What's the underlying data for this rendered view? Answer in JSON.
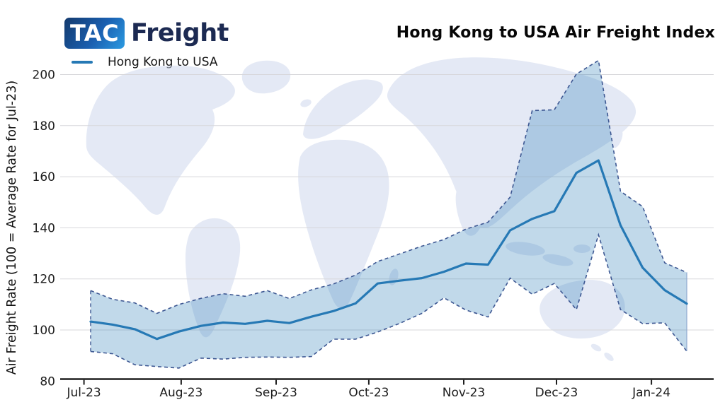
{
  "brand": {
    "box_text": "TAC",
    "name_text": "Freight"
  },
  "title": "Hong Kong to USA Air Freight Index",
  "legend": {
    "label": "Hong Kong to USA",
    "line_color": "#2679b5"
  },
  "y_axis": {
    "label": "Air Freight Rate (100 = Average Rate for Jul-23)",
    "ticks": [
      "80",
      "100",
      "120",
      "140",
      "160",
      "180",
      "200"
    ]
  },
  "x_axis": {
    "ticks": [
      "Jul-23",
      "Aug-23",
      "Sep-23",
      "Oct-23",
      "Nov-23",
      "Dec-23",
      "Jan-24"
    ]
  },
  "chart_data": {
    "type": "line",
    "title": "Hong Kong to USA Air Freight Index",
    "ylabel": "Air Freight Rate (100 = Average Rate for Jul-23)",
    "ylim": [
      80,
      207
    ],
    "grid": true,
    "legend_position": "top-left",
    "x_unit": "weekly observations, Jul-2023 to mid-Jan-2024",
    "x_tick_labels": [
      "Jul-23",
      "Aug-23",
      "Sep-23",
      "Oct-23",
      "Nov-23",
      "Dec-23",
      "Jan-24"
    ],
    "x_tick_week_index": [
      -0.3,
      4.1,
      8.4,
      12.6,
      16.9,
      21.1,
      25.4
    ],
    "y_gridline_values": [
      100,
      120,
      140,
      160,
      180,
      200
    ],
    "series": [
      {
        "name": "Hong Kong to USA",
        "role": "index",
        "values": [
          103.3,
          102.1,
          100.3,
          96.5,
          99.4,
          101.6,
          102.9,
          102.4,
          103.6,
          102.7,
          105.2,
          107.4,
          110.4,
          118.2,
          119.3,
          120.3,
          122.8,
          126.0,
          125.6,
          139.0,
          143.5,
          146.5,
          161.5,
          166.4,
          141.0,
          124.4,
          115.6,
          110.3
        ]
      },
      {
        "name": "Upper uncertainty band",
        "role": "band_upper",
        "values": [
          115.4,
          112.0,
          110.6,
          106.5,
          110.0,
          112.4,
          114.2,
          113.2,
          115.4,
          112.3,
          115.7,
          118.0,
          121.5,
          126.8,
          129.8,
          132.8,
          135.4,
          139.5,
          142.2,
          152.0,
          185.9,
          186.2,
          200.2,
          205.5,
          154.3,
          148.3,
          126.3,
          122.5
        ]
      },
      {
        "name": "Lower uncertainty band",
        "role": "band_lower",
        "values": [
          91.6,
          90.7,
          86.4,
          85.7,
          85.1,
          89.0,
          88.6,
          89.3,
          89.4,
          89.3,
          89.6,
          96.4,
          96.4,
          99.2,
          102.6,
          106.5,
          112.6,
          107.8,
          105.1,
          120.3,
          114.0,
          118.2,
          108.0,
          137.3,
          108.0,
          102.5,
          102.8,
          91.7
        ]
      }
    ],
    "colors": {
      "line": "#2679b5",
      "band_fill": "#1f77b4",
      "band_fill_opacity": 0.28,
      "band_edge": "#3d5792",
      "gridline": "#d7d7db",
      "axis": "#1f1f1f"
    }
  }
}
